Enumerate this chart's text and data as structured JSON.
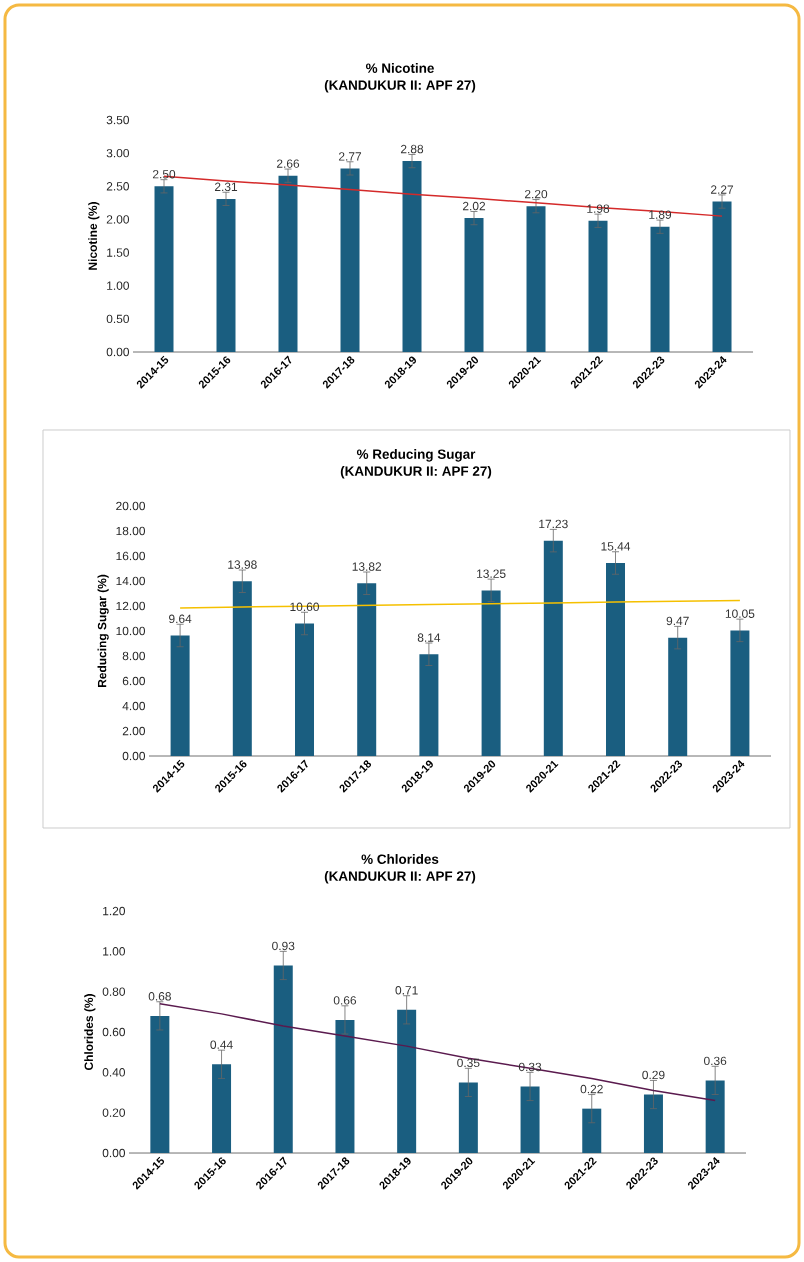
{
  "chart_data": [
    {
      "type": "bar",
      "title": "% Nicotine",
      "subtitle": "(KANDUKUR II:  APF 27)",
      "ylabel": "Nicotine (%)",
      "categories": [
        "2014-15",
        "2015-16",
        "2016-17",
        "2017-18",
        "2018-19",
        "2019-20",
        "2020-21",
        "2021-22",
        "2022-23",
        "2023-24"
      ],
      "ylim": [
        0,
        3.5
      ],
      "yticks": [
        {
          "value": 0,
          "label": "0.00"
        },
        {
          "value": 0.5,
          "label": "0.50"
        },
        {
          "value": 1,
          "label": "1.00"
        },
        {
          "value": 1.5,
          "label": "1.50"
        },
        {
          "value": 2,
          "label": "2.00"
        },
        {
          "value": 2.5,
          "label": "2.50"
        },
        {
          "value": 3,
          "label": "3.00"
        },
        {
          "value": 3.5,
          "label": "3.50"
        }
      ],
      "series": [
        {
          "color": "#1a5e80",
          "values": [
            2.5,
            2.31,
            2.66,
            2.77,
            2.88,
            2.02,
            2.2,
            1.98,
            1.89,
            2.27
          ],
          "errors": [
            0.1,
            0.1,
            0.1,
            0.1,
            0.1,
            0.1,
            0.1,
            0.1,
            0.1,
            0.1
          ],
          "value_labels": [
            "2.50",
            "2.31",
            "2.66",
            "2.77",
            "2.88",
            "2.02",
            "2.20",
            "1.98",
            "1.89",
            "2.27"
          ]
        },
        {
          "type": "line",
          "color": "#d42a2a",
          "values": [
            2.65,
            2.58,
            2.52,
            2.45,
            2.38,
            2.32,
            2.25,
            2.18,
            2.12,
            2.05
          ]
        }
      ]
    },
    {
      "type": "bar",
      "title": "% Reducing Sugar",
      "subtitle": "(KANDUKUR II: APF 27)",
      "ylabel": "Reducing Sugar (%)",
      "categories": [
        "2014-15",
        "2015-16",
        "2016-17",
        "2017-18",
        "2018-19",
        "2019-20",
        "2020-21",
        "2021-22",
        "2022-23",
        "2023-24"
      ],
      "ylim": [
        0,
        20
      ],
      "yticks": [
        {
          "value": 0,
          "label": "0.00"
        },
        {
          "value": 2,
          "label": "2.00"
        },
        {
          "value": 4,
          "label": "4.00"
        },
        {
          "value": 6,
          "label": "6.00"
        },
        {
          "value": 8,
          "label": "8.00"
        },
        {
          "value": 10,
          "label": "10.00"
        },
        {
          "value": 12,
          "label": "12.00"
        },
        {
          "value": 14,
          "label": "14.00"
        },
        {
          "value": 16,
          "label": "16.00"
        },
        {
          "value": 18,
          "label": "18.00"
        },
        {
          "value": 20,
          "label": "20.00"
        }
      ],
      "series": [
        {
          "color": "#1a5e80",
          "values": [
            9.64,
            13.98,
            10.6,
            13.82,
            8.14,
            13.25,
            17.23,
            15.44,
            9.47,
            10.05
          ],
          "errors": [
            0.9,
            0.9,
            0.9,
            0.9,
            0.9,
            0.9,
            0.9,
            0.9,
            0.9,
            0.9
          ],
          "value_labels": [
            "9.64",
            "13.98",
            "10.60",
            "13.82",
            "8.14",
            "13.25",
            "17.23",
            "15.44",
            "9.47",
            "10.05"
          ]
        },
        {
          "type": "line",
          "color": "#f5c000",
          "values": [
            11.85,
            11.92,
            11.98,
            12.05,
            12.12,
            12.18,
            12.25,
            12.32,
            12.38,
            12.45
          ]
        }
      ]
    },
    {
      "type": "bar",
      "title": "% Chlorides",
      "subtitle": "(KANDUKUR II: APF 27)",
      "ylabel": "Chlorides (%)",
      "categories": [
        "2014-15",
        "2015-16",
        "2016-17",
        "2017-18",
        "2018-19",
        "2019-20",
        "2020-21",
        "2021-22",
        "2022-23",
        "2023-24"
      ],
      "ylim": [
        0,
        1.2
      ],
      "yticks": [
        {
          "value": 0,
          "label": "0.00"
        },
        {
          "value": 0.2,
          "label": "0.20"
        },
        {
          "value": 0.4,
          "label": "0.40"
        },
        {
          "value": 0.6,
          "label": "0.60"
        },
        {
          "value": 0.8,
          "label": "0.80"
        },
        {
          "value": 1,
          "label": "1.00"
        },
        {
          "value": 1.2,
          "label": "1.20"
        }
      ],
      "series": [
        {
          "color": "#1a5e80",
          "values": [
            0.68,
            0.44,
            0.93,
            0.66,
            0.71,
            0.35,
            0.33,
            0.22,
            0.29,
            0.36
          ],
          "errors": [
            0.07,
            0.07,
            0.07,
            0.07,
            0.07,
            0.07,
            0.07,
            0.07,
            0.07,
            0.07
          ],
          "value_labels": [
            "0.68",
            "0.44",
            "0.93",
            "0.66",
            "0.71",
            "0.35",
            "0.33",
            "0.22",
            "0.29",
            "0.36"
          ]
        },
        {
          "type": "line",
          "color": "#5a1a4e",
          "values": [
            0.74,
            0.69,
            0.63,
            0.58,
            0.53,
            0.47,
            0.42,
            0.37,
            0.31,
            0.26
          ]
        }
      ]
    }
  ]
}
